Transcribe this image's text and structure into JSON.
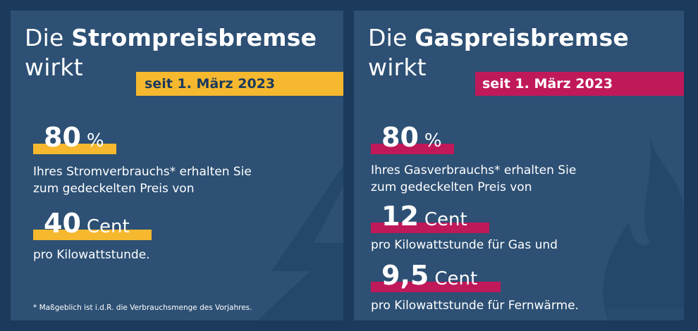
{
  "colors": {
    "background": "#1b3a5c",
    "panel": "#2d5074",
    "strom_accent": "#f5b82e",
    "gas_accent": "#c0195a",
    "text": "#ffffff",
    "date_text_strom": "#1b3a5c"
  },
  "strom": {
    "title_regular": "Die",
    "title_bold": "Strompreisbremse",
    "title_line2": "wirkt",
    "date": "seit 1. März 2023",
    "percent_value": "80",
    "percent_unit": "%",
    "desc_line1": "Ihres Stromverbrauchs* erhalten Sie",
    "desc_line2": "zum gedeckelten Preis von",
    "price_value": "40",
    "price_unit": "Cent",
    "price_desc": "pro Kilowattstunde.",
    "footnote": "* Maßgeblich ist i.d.R. die Verbrauchsmenge des Vorjahres.",
    "deco_icon": "lightning-bolt-icon"
  },
  "gas": {
    "title_regular": "Die",
    "title_bold": "Gaspreisbremse",
    "title_line2": "wirkt",
    "date": "seit 1. März 2023",
    "percent_value": "80",
    "percent_unit": "%",
    "desc_line1": "Ihres Gasverbrauchs* erhalten Sie",
    "desc_line2": "zum gedeckelten Preis von",
    "price1_value": "12",
    "price1_unit": "Cent",
    "price1_desc": "pro Kilowattstunde für Gas und",
    "price2_value": "9,5",
    "price2_unit": "Cent",
    "price2_desc": "pro Kilowattstunde für Fernwärme.",
    "deco_icon": "gas-flame-icon"
  }
}
